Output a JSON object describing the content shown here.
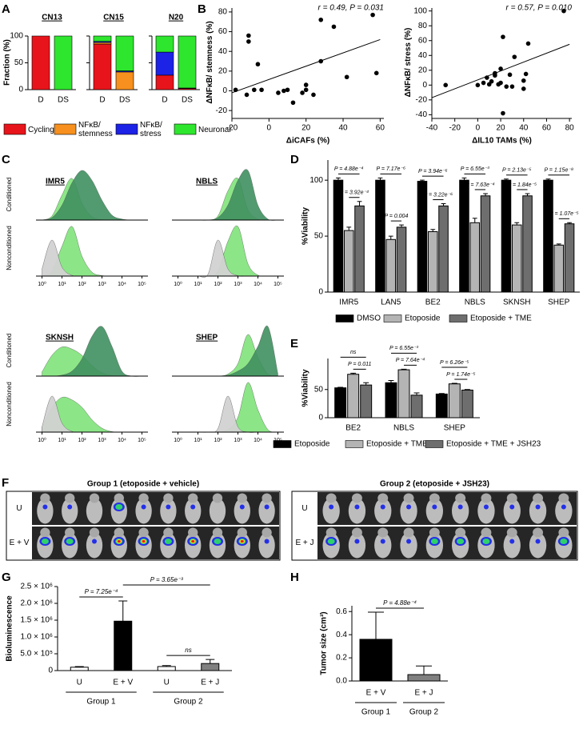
{
  "chart_data": [
    {
      "type": "stacked_bar",
      "panel": "A",
      "ylabel": "Fraction (%)",
      "ylim": [
        0,
        100
      ],
      "yticks": [
        0,
        50,
        100
      ],
      "categories": [
        "D",
        "DS"
      ],
      "series": [
        {
          "name": "Cycling",
          "color": "#e8141b"
        },
        {
          "name": "NFκB/ stemness",
          "color": "#f7901e"
        },
        {
          "name": "NFκB/ stress",
          "color": "#1c22e6"
        },
        {
          "name": "Neuronal",
          "color": "#2ee62e"
        }
      ],
      "panels": [
        {
          "title": "CN13",
          "values": [
            [
              100,
              0
            ],
            [
              0,
              0
            ],
            [
              0,
              0
            ],
            [
              0,
              100
            ]
          ]
        },
        {
          "title": "CN15",
          "values": [
            [
              85,
              0
            ],
            [
              3,
              33
            ],
            [
              2,
              2
            ],
            [
              10,
              65
            ]
          ]
        },
        {
          "title": "N20",
          "values": [
            [
              27,
              2
            ],
            [
              0,
              0
            ],
            [
              43,
              1
            ],
            [
              30,
              97
            ]
          ]
        }
      ]
    },
    {
      "type": "scatter",
      "panel": "B",
      "stat": "r = 0.49, P = 0.031",
      "xlabel": "ΔiCAFs (%)",
      "ylabel": "ΔNFκB/ stemness (%)",
      "xlim": [
        -20,
        62
      ],
      "ylim": [
        -28,
        84
      ],
      "xticks": [
        -20,
        0,
        20,
        40,
        60
      ],
      "yticks": [
        -20,
        0,
        20,
        40,
        60,
        80
      ],
      "x": [
        -18,
        -12,
        -8,
        -4,
        -11,
        -11,
        -6,
        5,
        8,
        10,
        13,
        18,
        20,
        20,
        24,
        28,
        28,
        35,
        42,
        56,
        58
      ],
      "y": [
        1,
        -4,
        1,
        1,
        50,
        56,
        27,
        -2,
        0,
        1,
        -12,
        -2,
        1,
        6,
        -4,
        72,
        30,
        65,
        14,
        77,
        18
      ],
      "trendline": {
        "x": [
          -20,
          60
        ],
        "y": [
          -2,
          52
        ]
      }
    },
    {
      "type": "scatter",
      "stat": "r = 0.57, P = 0.010",
      "xlabel": "ΔIL10 TAMs (%)",
      "ylabel": "ΔNFκB/ stress (%)",
      "xlim": [
        -40,
        82
      ],
      "ylim": [
        -45,
        104
      ],
      "xticks": [
        -40,
        -20,
        0,
        20,
        40,
        60,
        80
      ],
      "yticks": [
        -40,
        -20,
        0,
        20,
        40,
        60,
        80,
        100
      ],
      "x": [
        -28,
        0,
        5,
        8,
        10,
        12,
        15,
        15,
        18,
        20,
        20,
        22,
        22,
        25,
        28,
        30,
        32,
        40,
        40,
        42,
        44,
        75
      ],
      "y": [
        0,
        0,
        3,
        10,
        1,
        5,
        13,
        16,
        1,
        3,
        22,
        65,
        -38,
        -2,
        14,
        -2,
        38,
        6,
        -5,
        15,
        56,
        100
      ],
      "trendline": {
        "x": [
          -40,
          80
        ],
        "y": [
          -17,
          55
        ]
      }
    },
    {
      "type": "density",
      "panel": "C",
      "row_labels": [
        "Conditioned",
        "Nonconditioned"
      ],
      "xlog": true,
      "xlim": [
        0.5,
        200000
      ],
      "xticks": [
        {
          "value": 1,
          "label": "10⁰"
        },
        {
          "value": 10,
          "label": "10¹"
        },
        {
          "value": 100,
          "label": "10²"
        },
        {
          "value": 1000,
          "label": "10³"
        },
        {
          "value": 10000,
          "label": "10⁴"
        },
        {
          "value": 100000,
          "label": "10⁵"
        }
      ],
      "x": [
        1,
        3.162,
        10,
        31.62,
        100,
        316.2,
        1000,
        3162,
        10000,
        31620,
        100000
      ],
      "samples": [
        {
          "title": "IMR5",
          "series": [
            {
              "color": "#3f8f5f",
              "values": [
                0,
                5,
                30,
                75,
                100,
                80,
                40,
                10,
                2,
                0,
                0
              ]
            },
            {
              "color": "#7fe37a",
              "values": [
                0,
                10,
                60,
                100,
                40,
                8,
                1,
                0,
                0,
                0,
                0
              ]
            },
            {
              "color": "#d2d2d2",
              "values": [
                20,
                100,
                25,
                2,
                0,
                0,
                0,
                0,
                0,
                0,
                0
              ]
            }
          ]
        },
        {
          "title": "NBLS",
          "series": [
            {
              "color": "#3f8f5f",
              "values": [
                0,
                0,
                0,
                0,
                5,
                30,
                80,
                100,
                30,
                2,
                0
              ]
            },
            {
              "color": "#7fe37a",
              "values": [
                0,
                0,
                0,
                0,
                10,
                70,
                100,
                25,
                2,
                0,
                0
              ]
            },
            {
              "color": "#d2d2d2",
              "values": [
                0,
                0,
                0,
                5,
                100,
                20,
                1,
                0,
                0,
                0,
                0
              ]
            }
          ]
        },
        {
          "title": "SKNSH",
          "series": [
            {
              "color": "#3f8f5f",
              "values": [
                0,
                0,
                2,
                10,
                35,
                80,
                100,
                60,
                10,
                0,
                0
              ]
            },
            {
              "color": "#7fe37a",
              "values": [
                10,
                50,
                70,
                65,
                50,
                25,
                8,
                1,
                0,
                0,
                0
              ]
            },
            {
              "color": "#d2d2d2",
              "values": [
                15,
                100,
                25,
                2,
                0,
                0,
                0,
                0,
                0,
                0,
                0
              ]
            }
          ]
        },
        {
          "title": "SHEP",
          "series": [
            {
              "color": "#3f8f5f",
              "values": [
                0,
                0,
                0,
                0,
                0,
                2,
                10,
                25,
                60,
                100,
                5
              ]
            },
            {
              "color": "#7fe37a",
              "values": [
                0,
                0,
                0,
                0,
                0,
                5,
                30,
                100,
                45,
                5,
                0
              ]
            },
            {
              "color": "#d2d2d2",
              "values": [
                0,
                0,
                0,
                0,
                10,
                100,
                15,
                0,
                0,
                0,
                0
              ]
            }
          ]
        }
      ]
    },
    {
      "type": "bar",
      "panel": "D",
      "ylabel": "%Viability",
      "ylim": [
        0,
        118
      ],
      "yticks": [
        0,
        50,
        100
      ],
      "categories": [
        "IMR5",
        "LAN5",
        "BE2",
        "NBLS",
        "SKNSH",
        "SHEP"
      ],
      "series": [
        {
          "name": "DMSO",
          "color": "#000000",
          "values": [
            100,
            100,
            99,
            100,
            100,
            100
          ],
          "errors": [
            2,
            2,
            1,
            2,
            1,
            1
          ]
        },
        {
          "name": "Etoposide",
          "color": "#b4b4b4",
          "values": [
            55,
            47,
            54,
            62,
            60,
            42
          ],
          "errors": [
            3,
            3,
            2,
            4,
            2,
            1
          ]
        },
        {
          "name": "Etoposide + TME",
          "color": "#6e6e6e",
          "values": [
            77,
            58,
            77,
            86,
            86,
            61
          ],
          "errors": [
            4,
            2,
            2,
            2,
            2,
            1
          ]
        }
      ],
      "annotations": [
        [
          "P = 4.88e⁻⁴",
          "P = 3.92e⁻⁴"
        ],
        [
          "P = 7.17e⁻⁶",
          "P = 0.004"
        ],
        [
          "P = 3.94e⁻⁶",
          "P = 3.22e⁻⁶"
        ],
        [
          "P = 6.55e⁻³",
          "P = 7.63e⁻⁴"
        ],
        [
          "P = 2.13e⁻⁵",
          "P = 1.84e⁻⁵"
        ],
        [
          "P = 1.15e⁻⁸",
          "P = 1.07e⁻⁵"
        ]
      ]
    },
    {
      "type": "bar",
      "panel": "E",
      "ylabel": "%Viability",
      "ylim": [
        0,
        105
      ],
      "yticks": [
        0,
        50
      ],
      "categories": [
        "BE2",
        "NBLS",
        "SHEP"
      ],
      "series": [
        {
          "name": "Etoposide",
          "color": "#000000",
          "values": [
            53,
            62,
            42
          ],
          "errors": [
            1,
            4,
            1
          ]
        },
        {
          "name": "Etoposide + TME",
          "color": "#b4b4b4",
          "values": [
            77,
            85,
            60
          ],
          "errors": [
            2,
            1,
            1
          ]
        },
        {
          "name": "Etoposide + TME + JSH23",
          "color": "#6e6e6e",
          "values": [
            58,
            40,
            49
          ],
          "errors": [
            4,
            4,
            1
          ]
        }
      ],
      "annotations": [
        [
          "ns",
          "P = 0.011"
        ],
        [
          "P = 6.55e⁻³",
          "P = 7.64e⁻⁴"
        ],
        [
          "P = 6.26e⁻⁵",
          "P = 1.74e⁻⁵"
        ]
      ]
    },
    {
      "type": "bar",
      "panel": "G",
      "ylabel": "Bioluminescence",
      "ylim": [
        0,
        2500000
      ],
      "yticks": [
        0,
        {
          "value": 500000,
          "label": "5.0 × 10⁵"
        },
        {
          "value": 1000000,
          "label": "1.0 × 10⁶"
        },
        {
          "value": 1500000,
          "label": "1.5 × 10⁶"
        },
        {
          "value": 2000000,
          "label": "2.0 × 10⁶"
        },
        {
          "value": 2500000,
          "label": "2.5 × 10⁶"
        }
      ],
      "categories": [
        "U",
        "E + V",
        "U",
        "E + J"
      ],
      "groups": [
        "Group 1",
        "Group 2"
      ],
      "values": [
        100000,
        1470000,
        120000,
        210000
      ],
      "errors": [
        20000,
        600000,
        30000,
        120000
      ],
      "colors": [
        "#ffffff",
        "#000000",
        "#ffffff",
        "#808080"
      ],
      "annotations": [
        "P = 7.25e⁻⁴",
        "P = 3.65e⁻³",
        "ns"
      ]
    },
    {
      "type": "bar",
      "panel": "H",
      "ylabel": "Tumor size (cm³)",
      "ylim": [
        0,
        0.65
      ],
      "yticks": [
        {
          "value": 0,
          "label": "0.0"
        },
        0.2,
        0.4,
        0.6
      ],
      "categories": [
        "E + V",
        "E + J"
      ],
      "groups": [
        "Group 1",
        "Group 2"
      ],
      "values": [
        0.36,
        0.055
      ],
      "errors": [
        0.235,
        0.075
      ],
      "colors": [
        "#000000",
        "#808080"
      ],
      "annotations": [
        "P = 4.88e⁻⁴"
      ]
    }
  ],
  "image_panel": {
    "panel": "F",
    "groups": [
      {
        "title": "Group 1 (etoposide + vehicle)",
        "rows": [
          "U",
          "E + V"
        ]
      },
      {
        "title": "Group 2 (etoposide + JSH23)",
        "rows": [
          "U",
          "E + J"
        ]
      }
    ]
  }
}
